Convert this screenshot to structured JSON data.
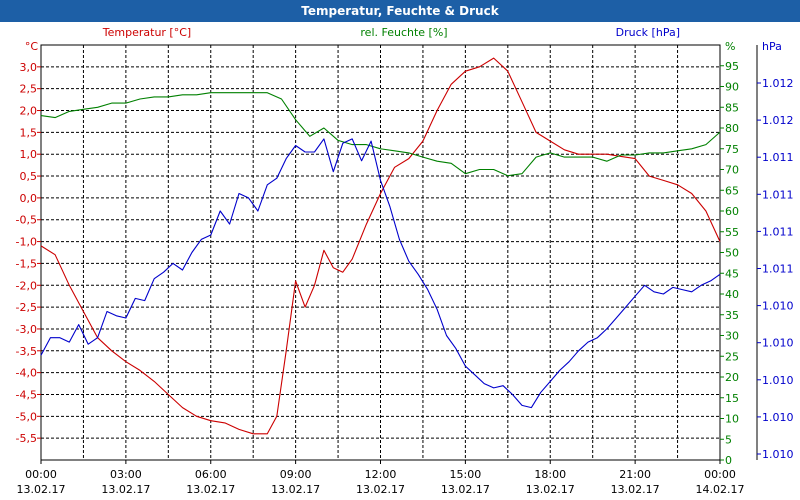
{
  "window": {
    "title": "Temperatur, Feuchte & Druck"
  },
  "chart_data": {
    "type": "line",
    "title": "Temperatur, Feuchte & Druck",
    "xlabel": "",
    "x_ticks": [
      {
        "time": "00:00",
        "date": "13.02.17"
      },
      {
        "time": "03:00",
        "date": "13.02.17"
      },
      {
        "time": "06:00",
        "date": "13.02.17"
      },
      {
        "time": "09:00",
        "date": "13.02.17"
      },
      {
        "time": "12:00",
        "date": "13.02.17"
      },
      {
        "time": "15:00",
        "date": "13.02.17"
      },
      {
        "time": "18:00",
        "date": "13.02.17"
      },
      {
        "time": "21:00",
        "date": "13.02.17"
      },
      {
        "time": "00:00",
        "date": "14.02.17"
      }
    ],
    "xlim": [
      "13.02.17 00:00",
      "14.02.17 00:00"
    ],
    "grid": true,
    "axes": {
      "temperature": {
        "label": "Temperatur [°C]",
        "unit": "°C",
        "color": "#cc0000",
        "ylim": [
          -6.0,
          3.5
        ],
        "ticks": [
          "3,0",
          "2,5",
          "2,0",
          "1,5",
          "1,0",
          "0,5",
          "0,0",
          "-0,5",
          "-1,0",
          "-1,5",
          "-2,0",
          "-2,5",
          "-3,0",
          "-3,5",
          "-4,0",
          "-4,5",
          "-5,0",
          "-5,5"
        ]
      },
      "humidity": {
        "label": "rel. Feuchte [%]",
        "unit": "%",
        "color": "#008000",
        "ylim": [
          0,
          100
        ],
        "ticks": [
          "95",
          "90",
          "85",
          "80",
          "75",
          "70",
          "65",
          "60",
          "55",
          "50",
          "45",
          "40",
          "35",
          "30",
          "25",
          "20",
          "15",
          "10",
          "5",
          "0"
        ]
      },
      "pressure": {
        "label": "Druck [hPa]",
        "unit": "hPa",
        "color": "#0000cc",
        "ticks": [
          "1.012",
          "1.012",
          "1.011",
          "1.011",
          "1.011",
          "1.011",
          "1.010",
          "1.010",
          "1.010",
          "1.010",
          "1.010"
        ]
      }
    },
    "series": [
      {
        "name": "Temperatur [°C]",
        "axis": "temperature",
        "color": "#cc0000",
        "x": [
          "13.02.17 00:00",
          "13.02.17 00:30",
          "13.02.17 01:00",
          "13.02.17 01:30",
          "13.02.17 02:00",
          "13.02.17 02:30",
          "13.02.17 03:00",
          "13.02.17 03:30",
          "13.02.17 04:00",
          "13.02.17 04:30",
          "13.02.17 05:00",
          "13.02.17 05:30",
          "13.02.17 06:00",
          "13.02.17 06:30",
          "13.02.17 07:00",
          "13.02.17 07:30",
          "13.02.17 08:00",
          "13.02.17 08:20",
          "13.02.17 08:40",
          "13.02.17 09:00",
          "13.02.17 09:20",
          "13.02.17 09:40",
          "13.02.17 10:00",
          "13.02.17 10:20",
          "13.02.17 10:40",
          "13.02.17 11:00",
          "13.02.17 11:30",
          "13.02.17 12:00",
          "13.02.17 12:30",
          "13.02.17 13:00",
          "13.02.17 13:30",
          "13.02.17 14:00",
          "13.02.17 14:30",
          "13.02.17 15:00",
          "13.02.17 15:30",
          "13.02.17 16:00",
          "13.02.17 16:30",
          "13.02.17 17:00",
          "13.02.17 17:30",
          "13.02.17 18:00",
          "13.02.17 18:30",
          "13.02.17 19:00",
          "13.02.17 19:30",
          "13.02.17 20:00",
          "13.02.17 20:30",
          "13.02.17 21:00",
          "13.02.17 21:30",
          "13.02.17 22:00",
          "13.02.17 22:30",
          "13.02.17 23:00",
          "13.02.17 23:30",
          "14.02.17 00:00"
        ],
        "values": [
          -1.1,
          -1.3,
          -2.0,
          -2.6,
          -3.2,
          -3.5,
          -3.75,
          -3.95,
          -4.2,
          -4.5,
          -4.8,
          -5.0,
          -5.1,
          -5.15,
          -5.3,
          -5.4,
          -5.4,
          -5.0,
          -3.5,
          -1.9,
          -2.5,
          -2.0,
          -1.2,
          -1.6,
          -1.7,
          -1.4,
          -0.6,
          0.1,
          0.7,
          0.9,
          1.3,
          2.0,
          2.6,
          2.9,
          3.0,
          3.2,
          2.9,
          2.2,
          1.5,
          1.3,
          1.1,
          1.0,
          1.0,
          1.0,
          0.95,
          0.9,
          0.5,
          0.4,
          0.3,
          0.1,
          -0.3,
          -1.0
        ]
      },
      {
        "name": "rel. Feuchte [%]",
        "axis": "humidity",
        "color": "#008000",
        "x": [
          "13.02.17 00:00",
          "13.02.17 00:30",
          "13.02.17 01:00",
          "13.02.17 01:30",
          "13.02.17 02:00",
          "13.02.17 02:30",
          "13.02.17 03:00",
          "13.02.17 03:30",
          "13.02.17 04:00",
          "13.02.17 04:30",
          "13.02.17 05:00",
          "13.02.17 05:30",
          "13.02.17 06:00",
          "13.02.17 06:30",
          "13.02.17 07:00",
          "13.02.17 07:30",
          "13.02.17 08:00",
          "13.02.17 08:30",
          "13.02.17 09:00",
          "13.02.17 09:30",
          "13.02.17 10:00",
          "13.02.17 10:30",
          "13.02.17 11:00",
          "13.02.17 11:30",
          "13.02.17 12:00",
          "13.02.17 12:30",
          "13.02.17 13:00",
          "13.02.17 13:30",
          "13.02.17 14:00",
          "13.02.17 14:30",
          "13.02.17 15:00",
          "13.02.17 15:30",
          "13.02.17 16:00",
          "13.02.17 16:30",
          "13.02.17 17:00",
          "13.02.17 17:30",
          "13.02.17 18:00",
          "13.02.17 18:30",
          "13.02.17 19:00",
          "13.02.17 19:30",
          "13.02.17 20:00",
          "13.02.17 20:30",
          "13.02.17 21:00",
          "13.02.17 21:30",
          "13.02.17 22:00",
          "13.02.17 22:30",
          "13.02.17 23:00",
          "13.02.17 23:30",
          "14.02.17 00:00"
        ],
        "values": [
          83,
          82.5,
          84,
          84.5,
          85,
          86,
          86,
          87,
          87.5,
          87.5,
          88,
          88,
          88.5,
          88.5,
          88.5,
          88.5,
          88.5,
          87,
          82,
          78,
          80,
          77,
          76,
          76,
          75,
          74.5,
          74,
          73,
          72,
          71.5,
          69,
          70,
          70,
          68.5,
          69,
          73,
          74,
          73,
          73,
          73,
          72,
          73.5,
          73.5,
          74,
          74,
          74.5,
          75,
          76,
          79
        ]
      },
      {
        "name": "Druck [hPa]",
        "axis": "pressure",
        "color": "#0000cc",
        "x": [
          "13.02.17 00:00",
          "13.02.17 00:20",
          "13.02.17 00:40",
          "13.02.17 01:00",
          "13.02.17 01:20",
          "13.02.17 01:40",
          "13.02.17 02:00",
          "13.02.17 02:20",
          "13.02.17 02:40",
          "13.02.17 03:00",
          "13.02.17 03:20",
          "13.02.17 03:40",
          "13.02.17 04:00",
          "13.02.17 04:20",
          "13.02.17 04:40",
          "13.02.17 05:00",
          "13.02.17 05:20",
          "13.02.17 05:40",
          "13.02.17 06:00",
          "13.02.17 06:20",
          "13.02.17 06:40",
          "13.02.17 07:00",
          "13.02.17 07:20",
          "13.02.17 07:40",
          "13.02.17 08:00",
          "13.02.17 08:20",
          "13.02.17 08:40",
          "13.02.17 09:00",
          "13.02.17 09:20",
          "13.02.17 09:40",
          "13.02.17 10:00",
          "13.02.17 10:20",
          "13.02.17 10:40",
          "13.02.17 11:00",
          "13.02.17 11:20",
          "13.02.17 11:40",
          "13.02.17 12:00",
          "13.02.17 12:20",
          "13.02.17 12:40",
          "13.02.17 13:00",
          "13.02.17 13:20",
          "13.02.17 13:40",
          "13.02.17 14:00",
          "13.02.17 14:20",
          "13.02.17 14:40",
          "13.02.17 15:00",
          "13.02.17 15:20",
          "13.02.17 15:40",
          "13.02.17 16:00",
          "13.02.17 16:20",
          "13.02.17 16:40",
          "13.02.17 17:00",
          "13.02.17 17:20",
          "13.02.17 17:40",
          "13.02.17 18:00",
          "13.02.17 18:20",
          "13.02.17 18:40",
          "13.02.17 19:00",
          "13.02.17 19:20",
          "13.02.17 19:40",
          "13.02.17 20:00",
          "13.02.17 20:20",
          "13.02.17 20:40",
          "13.02.17 21:00",
          "13.02.17 21:20",
          "13.02.17 21:40",
          "13.02.17 22:00",
          "13.02.17 22:20",
          "13.02.17 22:40",
          "13.02.17 23:00",
          "13.02.17 23:20",
          "13.02.17 23:40",
          "14.02.17 00:00"
        ],
        "values": [
          -3.6,
          -3.2,
          -3.2,
          -3.3,
          -2.9,
          -3.35,
          -3.2,
          -2.6,
          -2.7,
          -2.75,
          -2.3,
          -2.35,
          -1.85,
          -1.7,
          -1.5,
          -1.65,
          -1.25,
          -0.95,
          -0.85,
          -0.3,
          -0.6,
          0.1,
          0.0,
          -0.3,
          0.3,
          0.45,
          0.9,
          1.2,
          1.05,
          1.05,
          1.35,
          0.6,
          1.25,
          1.35,
          0.85,
          1.3,
          0.4,
          -0.2,
          -0.95,
          -1.45,
          -1.75,
          -2.1,
          -2.55,
          -3.15,
          -3.45,
          -3.85,
          -4.05,
          -4.25,
          -4.35,
          -4.3,
          -4.5,
          -4.75,
          -4.8,
          -4.45,
          -4.2,
          -3.95,
          -3.75,
          -3.5,
          -3.3,
          -3.2,
          -3.0,
          -2.75,
          -2.5,
          -2.25,
          -2.0,
          -2.15,
          -2.2,
          -2.05,
          -2.1,
          -2.15,
          -2.0,
          -1.9,
          -1.75
        ]
      }
    ]
  }
}
